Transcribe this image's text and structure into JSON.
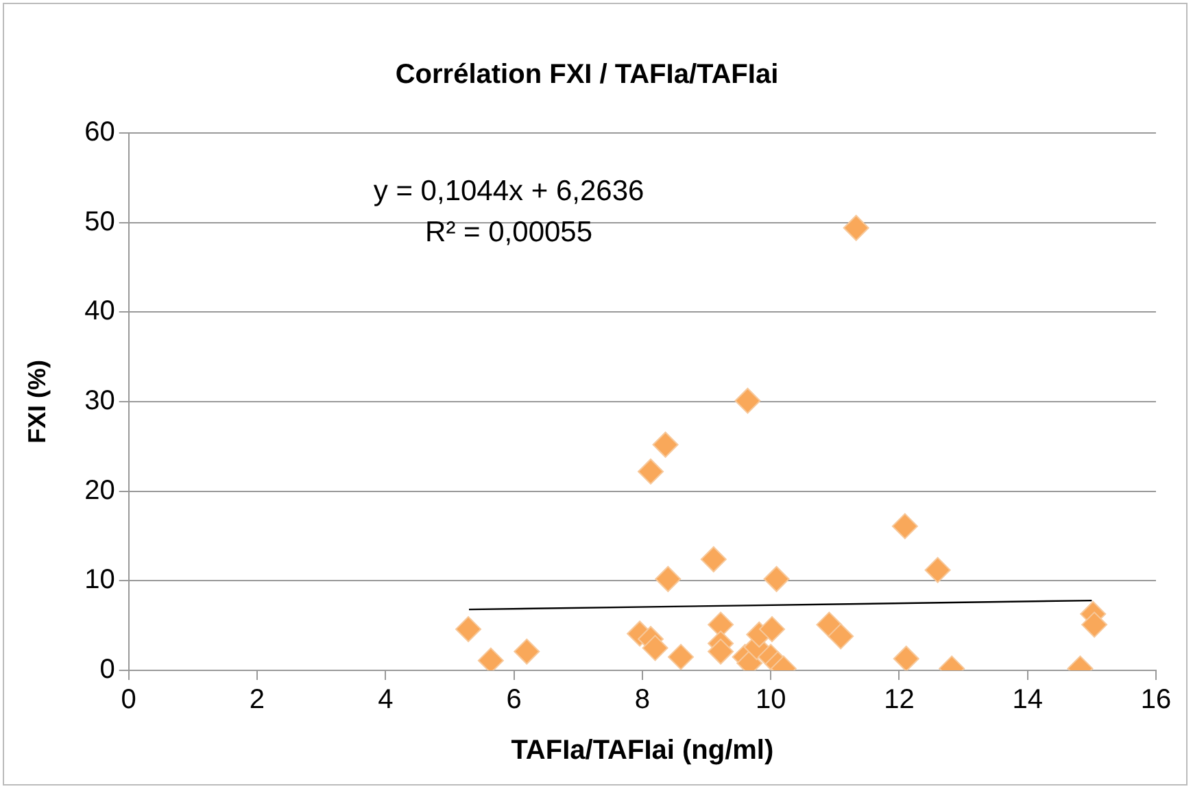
{
  "chart_data": {
    "type": "scatter",
    "title": "Corrélation FXI / TAFIa/TAFIai",
    "xlabel": "TAFIa/TAFIai (ng/ml)",
    "ylabel": "FXI (%)",
    "xlim": [
      0,
      16
    ],
    "xticks": [
      0,
      2,
      4,
      6,
      8,
      10,
      12,
      14,
      16
    ],
    "ylim": [
      0,
      60
    ],
    "yticks": [
      0,
      10,
      20,
      30,
      40,
      50,
      60
    ],
    "grid": "y",
    "legend": false,
    "marker": "diamond",
    "annotations": [
      "y = 0,1044x + 6,2636",
      "R² = 0,00055"
    ],
    "series": [
      {
        "color": "#f9a85a",
        "x": [
          5.29,
          5.64,
          6.2,
          7.96,
          8.13,
          8.2,
          8.6,
          8.13,
          8.36,
          8.4,
          9.11,
          9.22,
          9.22,
          9.22,
          9.64,
          9.6,
          9.67,
          9.78,
          9.82,
          10.02,
          10.0,
          10.09,
          10.11,
          10.2,
          10.91,
          11.09,
          11.33,
          12.09,
          12.11,
          12.6,
          12.82,
          14.82,
          15.02,
          15.04
        ],
        "values": [
          4.6,
          1.1,
          2.1,
          4.1,
          3.5,
          2.5,
          1.5,
          22.2,
          25.2,
          10.2,
          12.4,
          5.1,
          3.0,
          2.1,
          30.1,
          1.5,
          0.8,
          2.6,
          4.0,
          4.6,
          1.5,
          10.2,
          0.7,
          0.2,
          5.1,
          3.8,
          49.4,
          16.1,
          1.3,
          11.2,
          0.2,
          0.2,
          6.3,
          5.1
        ]
      },
      {
        "type": "line",
        "color": "#000000",
        "marker": "none",
        "x": [
          5.3,
          15.0
        ],
        "values": [
          6.8,
          7.8
        ]
      }
    ]
  }
}
